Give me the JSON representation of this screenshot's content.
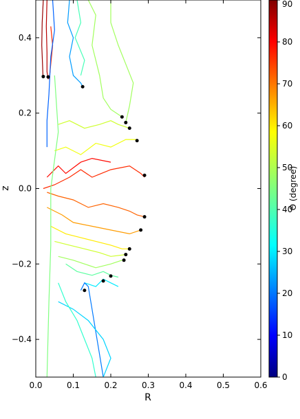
{
  "chart_data": {
    "type": "line",
    "title": "",
    "xlabel": "R",
    "ylabel": "z",
    "xlim": [
      0.0,
      0.6
    ],
    "ylim": [
      -0.5,
      0.5
    ],
    "x_ticks": [
      "0.0",
      "0.1",
      "0.2",
      "0.3",
      "0.4",
      "0.5",
      "0.6"
    ],
    "y_ticks": [
      "−0.4",
      "−0.2",
      "0.0",
      "0.2",
      "0.4"
    ],
    "grid": false,
    "colorbar": {
      "label": "Θ (degree)",
      "min": 0,
      "max": 90,
      "ticks": [
        "0",
        "10",
        "20",
        "30",
        "40",
        "50",
        "60",
        "70",
        "80",
        "90"
      ]
    },
    "series": [
      {
        "theta": 88,
        "points": [
          [
            0.02,
            0.5
          ],
          [
            0.017,
            0.44
          ],
          [
            0.016,
            0.38
          ],
          [
            0.018,
            0.33
          ],
          [
            0.019,
            0.3
          ]
        ]
      },
      {
        "theta": 85,
        "points": [
          [
            0.03,
            0.5
          ],
          [
            0.028,
            0.43
          ],
          [
            0.03,
            0.36
          ],
          [
            0.03,
            0.31
          ],
          [
            0.033,
            0.29
          ]
        ]
      },
      {
        "theta": 75,
        "points": [
          [
            0.04,
            0.43
          ],
          [
            0.045,
            0.38
          ],
          [
            0.04,
            0.33
          ],
          [
            0.036,
            0.29
          ]
        ]
      },
      {
        "theta": 20,
        "points": [
          [
            0.045,
            0.5
          ],
          [
            0.05,
            0.42
          ],
          [
            0.04,
            0.35
          ],
          [
            0.035,
            0.25
          ],
          [
            0.03,
            0.18
          ],
          [
            0.03,
            0.11
          ]
        ]
      },
      {
        "theta": 25,
        "points": [
          [
            0.09,
            0.5
          ],
          [
            0.085,
            0.44
          ],
          [
            0.1,
            0.4
          ],
          [
            0.09,
            0.35
          ],
          [
            0.1,
            0.3
          ],
          [
            0.12,
            0.28
          ],
          [
            0.125,
            0.27
          ]
        ]
      },
      {
        "theta": 40,
        "points": [
          [
            0.11,
            0.5
          ],
          [
            0.12,
            0.44
          ],
          [
            0.105,
            0.4
          ],
          [
            0.13,
            0.34
          ],
          [
            0.12,
            0.3
          ]
        ]
      },
      {
        "theta": 48,
        "points": [
          [
            0.14,
            0.5
          ],
          [
            0.16,
            0.46
          ],
          [
            0.15,
            0.38
          ],
          [
            0.17,
            0.3
          ],
          [
            0.18,
            0.24
          ],
          [
            0.2,
            0.21
          ],
          [
            0.23,
            0.19
          ]
        ]
      },
      {
        "theta": 48,
        "points": [
          [
            0.2,
            0.5
          ],
          [
            0.2,
            0.44
          ],
          [
            0.22,
            0.38
          ],
          [
            0.24,
            0.33
          ],
          [
            0.26,
            0.28
          ],
          [
            0.25,
            0.22
          ],
          [
            0.24,
            0.175
          ]
        ]
      },
      {
        "theta": 52,
        "points": [
          [
            0.06,
            0.17
          ],
          [
            0.09,
            0.18
          ],
          [
            0.13,
            0.16
          ],
          [
            0.17,
            0.17
          ],
          [
            0.2,
            0.18
          ],
          [
            0.22,
            0.17
          ],
          [
            0.25,
            0.16
          ]
        ]
      },
      {
        "theta": 55,
        "points": [
          [
            0.05,
            0.1
          ],
          [
            0.08,
            0.11
          ],
          [
            0.12,
            0.09
          ],
          [
            0.16,
            0.12
          ],
          [
            0.2,
            0.11
          ],
          [
            0.24,
            0.13
          ],
          [
            0.27,
            0.13
          ]
        ]
      },
      {
        "theta": 75,
        "points": [
          [
            0.02,
            0.0
          ],
          [
            0.05,
            0.01
          ],
          [
            0.09,
            0.03
          ],
          [
            0.12,
            0.05
          ],
          [
            0.15,
            0.03
          ],
          [
            0.2,
            0.05
          ],
          [
            0.25,
            0.06
          ],
          [
            0.28,
            0.04
          ],
          [
            0.29,
            0.03
          ]
        ]
      },
      {
        "theta": 78,
        "points": [
          [
            0.03,
            0.03
          ],
          [
            0.06,
            0.06
          ],
          [
            0.08,
            0.04
          ],
          [
            0.12,
            0.07
          ],
          [
            0.15,
            0.08
          ],
          [
            0.2,
            0.07
          ]
        ]
      },
      {
        "theta": 70,
        "points": [
          [
            0.03,
            -0.01
          ],
          [
            0.06,
            -0.02
          ],
          [
            0.1,
            -0.03
          ],
          [
            0.14,
            -0.05
          ],
          [
            0.18,
            -0.04
          ],
          [
            0.22,
            -0.05
          ],
          [
            0.25,
            -0.06
          ],
          [
            0.27,
            -0.07
          ],
          [
            0.29,
            -0.075
          ]
        ]
      },
      {
        "theta": 65,
        "points": [
          [
            0.03,
            -0.05
          ],
          [
            0.07,
            -0.07
          ],
          [
            0.1,
            -0.09
          ],
          [
            0.15,
            -0.1
          ],
          [
            0.2,
            -0.11
          ],
          [
            0.25,
            -0.12
          ],
          [
            0.28,
            -0.11
          ]
        ]
      },
      {
        "theta": 58,
        "points": [
          [
            0.04,
            -0.1
          ],
          [
            0.08,
            -0.12
          ],
          [
            0.12,
            -0.13
          ],
          [
            0.16,
            -0.14
          ],
          [
            0.2,
            -0.15
          ],
          [
            0.23,
            -0.16
          ],
          [
            0.25,
            -0.16
          ]
        ]
      },
      {
        "theta": 52,
        "points": [
          [
            0.05,
            -0.14
          ],
          [
            0.09,
            -0.15
          ],
          [
            0.13,
            -0.16
          ],
          [
            0.17,
            -0.17
          ],
          [
            0.2,
            -0.18
          ],
          [
            0.24,
            -0.175
          ]
        ]
      },
      {
        "theta": 48,
        "points": [
          [
            0.06,
            -0.18
          ],
          [
            0.1,
            -0.19
          ],
          [
            0.13,
            -0.2
          ],
          [
            0.16,
            -0.21
          ],
          [
            0.2,
            -0.2
          ],
          [
            0.23,
            -0.19
          ]
        ]
      },
      {
        "theta": 42,
        "points": [
          [
            0.08,
            -0.2
          ],
          [
            0.11,
            -0.22
          ],
          [
            0.15,
            -0.23
          ],
          [
            0.18,
            -0.22
          ],
          [
            0.2,
            -0.23
          ],
          [
            0.22,
            -0.235
          ]
        ]
      },
      {
        "theta": 32,
        "points": [
          [
            0.13,
            -0.25
          ],
          [
            0.16,
            -0.26
          ],
          [
            0.18,
            -0.24
          ],
          [
            0.2,
            -0.25
          ],
          [
            0.22,
            -0.26
          ]
        ]
      },
      {
        "theta": 22,
        "points": [
          [
            0.12,
            -0.27
          ],
          [
            0.13,
            -0.25
          ],
          [
            0.14,
            -0.26
          ],
          [
            0.15,
            -0.32
          ],
          [
            0.16,
            -0.38
          ],
          [
            0.17,
            -0.44
          ],
          [
            0.18,
            -0.5
          ]
        ]
      },
      {
        "theta": 30,
        "points": [
          [
            0.06,
            -0.3
          ],
          [
            0.1,
            -0.32
          ],
          [
            0.14,
            -0.35
          ],
          [
            0.18,
            -0.4
          ],
          [
            0.2,
            -0.45
          ],
          [
            0.18,
            -0.5
          ]
        ]
      },
      {
        "theta": 38,
        "points": [
          [
            0.06,
            -0.25
          ],
          [
            0.08,
            -0.3
          ],
          [
            0.11,
            -0.35
          ],
          [
            0.13,
            -0.4
          ],
          [
            0.15,
            -0.45
          ],
          [
            0.16,
            -0.5
          ]
        ]
      },
      {
        "theta": 45,
        "points": [
          [
            0.05,
            0.3
          ],
          [
            0.06,
            0.15
          ],
          [
            0.04,
            0.0
          ],
          [
            0.04,
            -0.15
          ],
          [
            0.035,
            -0.3
          ],
          [
            0.03,
            -0.5
          ]
        ]
      }
    ],
    "markers": [
      [
        0.02,
        0.297
      ],
      [
        0.033,
        0.296
      ],
      [
        0.125,
        0.27
      ],
      [
        0.23,
        0.19
      ],
      [
        0.24,
        0.175
      ],
      [
        0.25,
        0.16
      ],
      [
        0.27,
        0.127
      ],
      [
        0.29,
        0.035
      ],
      [
        0.29,
        -0.075
      ],
      [
        0.28,
        -0.11
      ],
      [
        0.25,
        -0.16
      ],
      [
        0.24,
        -0.175
      ],
      [
        0.235,
        -0.19
      ],
      [
        0.2,
        -0.232
      ],
      [
        0.18,
        -0.245
      ],
      [
        0.13,
        -0.27
      ]
    ]
  }
}
